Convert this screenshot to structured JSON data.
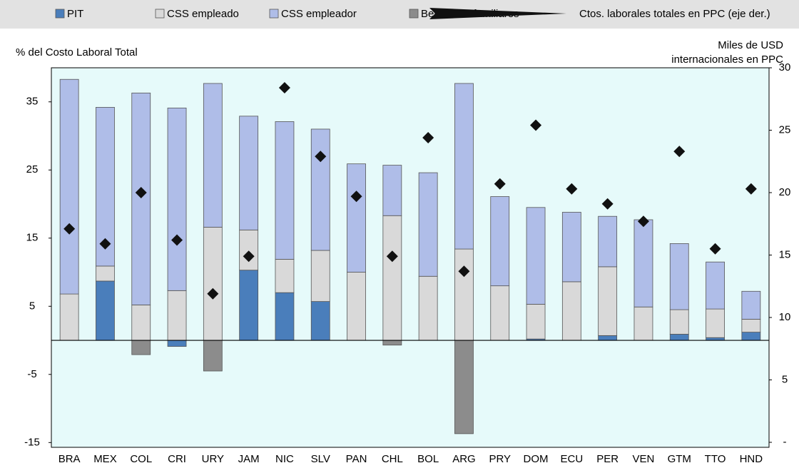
{
  "chart_data": {
    "type": "stacked-bar-scatter",
    "y_label": "% del Costo Laboral Total",
    "y2_label": [
      "Miles de USD",
      "internacionales en PPC"
    ],
    "categories": [
      "BRA",
      "MEX",
      "COL",
      "CRI",
      "URY",
      "JAM",
      "NIC",
      "SLV",
      "PAN",
      "CHL",
      "BOL",
      "ARG",
      "PRY",
      "DOM",
      "ECU",
      "PER",
      "VEN",
      "GTM",
      "TTO",
      "HND"
    ],
    "series": [
      {
        "name": "PIT",
        "color": "#4a7ebb",
        "values": [
          0,
          8.7,
          0,
          -0.9,
          0,
          10.3,
          7.0,
          5.7,
          0,
          0,
          0,
          0,
          0,
          0.2,
          0,
          0.7,
          0,
          0.9,
          0.4,
          1.2
        ]
      },
      {
        "name": "CSS empleado",
        "color": "#d9d9d9",
        "values": [
          6.8,
          2.2,
          5.2,
          7.3,
          16.6,
          5.9,
          4.9,
          7.5,
          10.0,
          18.3,
          9.4,
          13.4,
          8.0,
          5.1,
          8.6,
          10.1,
          4.9,
          3.6,
          4.2,
          1.9
        ]
      },
      {
        "name": "CSS empleador",
        "color": "#afbde8",
        "values": [
          31.5,
          23.3,
          31.1,
          26.8,
          21.1,
          16.7,
          20.2,
          17.8,
          15.9,
          7.4,
          15.2,
          24.3,
          13.1,
          14.2,
          10.2,
          7.4,
          12.8,
          9.7,
          6.9,
          4.1
        ]
      },
      {
        "name": "Beneficios familiares",
        "color": "#8c8c8c",
        "values": [
          0,
          0,
          -2.1,
          0,
          -4.5,
          0,
          0,
          0,
          0,
          -0.7,
          0,
          -13.7,
          0,
          0,
          0,
          0,
          0,
          0,
          0,
          0
        ]
      },
      {
        "name": "Ctos. laborales totales en PPC (eje der.)",
        "color": "#111111",
        "type": "scatter",
        "axis": "y2",
        "values": [
          17.1,
          15.9,
          20.0,
          16.2,
          11.9,
          14.9,
          28.4,
          22.9,
          19.7,
          14.9,
          24.4,
          13.7,
          20.7,
          25.4,
          20.3,
          19.1,
          17.7,
          23.3,
          15.5,
          20.3
        ]
      }
    ],
    "ylim": [
      -15.7,
      40
    ],
    "yticks": [
      -15,
      -5,
      5,
      15,
      25,
      35
    ],
    "y2lim": [
      -0.4,
      30
    ],
    "y2ticks": [
      {
        "value": 0,
        "label": "-"
      },
      5,
      10,
      15,
      20,
      25,
      30
    ],
    "grid": false,
    "legend": "top"
  }
}
